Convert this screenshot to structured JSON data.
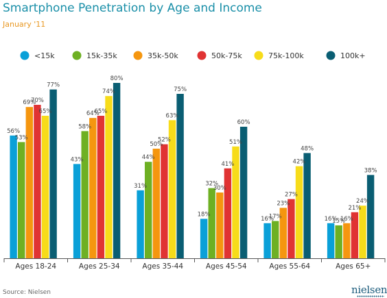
{
  "chart_data": {
    "type": "bar",
    "title": "Smartphone Penetration by Age and Income",
    "subtitle": "January '11",
    "categories": [
      "Ages 18-24",
      "Ages 25-34",
      "Ages 35-44",
      "Ages 45-54",
      "Ages 55-64",
      "Ages 65+"
    ],
    "series": [
      {
        "name": "<15k",
        "color": "#0aa0d8",
        "values": [
          56,
          43,
          31,
          18,
          16,
          16
        ]
      },
      {
        "name": "15k-35k",
        "color": "#6eb023",
        "values": [
          53,
          58,
          44,
          32,
          17,
          15
        ]
      },
      {
        "name": "35k-50k",
        "color": "#f5960f",
        "values": [
          69,
          64,
          50,
          30,
          23,
          16
        ]
      },
      {
        "name": "50k-75k",
        "color": "#e03333",
        "values": [
          70,
          65,
          52,
          41,
          27,
          21
        ]
      },
      {
        "name": "75k-100k",
        "color": "#f7dc1a",
        "values": [
          65,
          74,
          63,
          51,
          42,
          24
        ]
      },
      {
        "name": "100k+",
        "color": "#0a5e73",
        "values": [
          77,
          80,
          75,
          60,
          48,
          38
        ]
      }
    ],
    "value_suffix": "%",
    "ylim": [
      0,
      100
    ],
    "legend": "top",
    "grid": false
  },
  "source": "Source: Nielsen",
  "logo_text": "nielsen"
}
